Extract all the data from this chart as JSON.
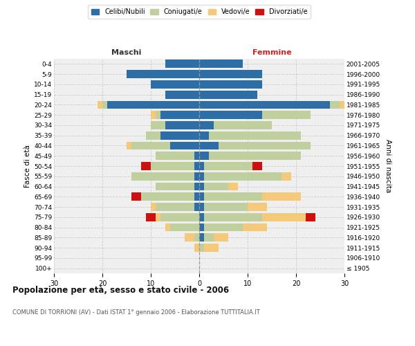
{
  "age_groups": [
    "100+",
    "95-99",
    "90-94",
    "85-89",
    "80-84",
    "75-79",
    "70-74",
    "65-69",
    "60-64",
    "55-59",
    "50-54",
    "45-49",
    "40-44",
    "35-39",
    "30-34",
    "25-29",
    "20-24",
    "15-19",
    "10-14",
    "5-9",
    "0-4"
  ],
  "birth_years": [
    "≤ 1905",
    "1906-1910",
    "1911-1915",
    "1916-1920",
    "1921-1925",
    "1926-1930",
    "1931-1935",
    "1936-1940",
    "1941-1945",
    "1946-1950",
    "1951-1955",
    "1956-1960",
    "1961-1965",
    "1966-1970",
    "1971-1975",
    "1976-1980",
    "1981-1985",
    "1986-1990",
    "1991-1995",
    "1996-2000",
    "2001-2005"
  ],
  "colors": {
    "celibi": "#2E6EA6",
    "coniugati": "#BFCF9E",
    "vedovi": "#F5C97A",
    "divorziati": "#CC1111"
  },
  "males": {
    "celibi": [
      0,
      0,
      0,
      0,
      0,
      0,
      1,
      1,
      1,
      1,
      1,
      1,
      6,
      8,
      7,
      8,
      19,
      7,
      10,
      15,
      7
    ],
    "coniugati": [
      0,
      0,
      0,
      1,
      6,
      8,
      8,
      11,
      8,
      13,
      9,
      8,
      8,
      3,
      3,
      1,
      1,
      0,
      0,
      0,
      0
    ],
    "vedovi": [
      0,
      0,
      1,
      2,
      1,
      1,
      1,
      0,
      0,
      0,
      0,
      0,
      1,
      0,
      0,
      1,
      1,
      0,
      0,
      0,
      0
    ],
    "divorziati": [
      0,
      0,
      0,
      0,
      0,
      2,
      0,
      2,
      0,
      0,
      2,
      0,
      0,
      0,
      0,
      0,
      0,
      0,
      0,
      0,
      0
    ]
  },
  "females": {
    "celibi": [
      0,
      0,
      0,
      1,
      1,
      1,
      1,
      1,
      1,
      1,
      1,
      2,
      4,
      2,
      3,
      13,
      27,
      12,
      13,
      13,
      9
    ],
    "coniugati": [
      0,
      0,
      1,
      2,
      8,
      12,
      9,
      12,
      5,
      16,
      10,
      19,
      19,
      19,
      12,
      10,
      2,
      0,
      0,
      0,
      0
    ],
    "vedovi": [
      0,
      0,
      3,
      3,
      5,
      9,
      4,
      8,
      2,
      2,
      0,
      0,
      0,
      0,
      0,
      0,
      1,
      0,
      0,
      0,
      0
    ],
    "divorziati": [
      0,
      0,
      0,
      0,
      0,
      2,
      0,
      0,
      0,
      0,
      2,
      0,
      0,
      0,
      0,
      0,
      0,
      0,
      0,
      0,
      0
    ]
  },
  "xlim": 30,
  "title": "Popolazione per età, sesso e stato civile - 2006",
  "subtitle": "COMUNE DI TORRIONI (AV) - Dati ISTAT 1° gennaio 2006 - Elaborazione TUTTITALIA.IT",
  "ylabel_left": "Fasce di età",
  "ylabel_right": "Anni di nascita",
  "label_maschi": "Maschi",
  "label_femmine": "Femmine",
  "legend_labels": [
    "Celibi/Nubili",
    "Coniugati/e",
    "Vedovi/e",
    "Divorziati/e"
  ],
  "bg_color": "#FFFFFF",
  "plot_bg": "#EFEFEF",
  "grid_color": "#CCCCCC"
}
